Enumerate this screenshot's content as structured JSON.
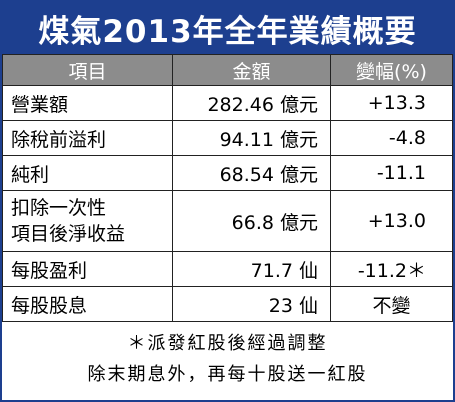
{
  "header": {
    "title": "煤氣2013年全年業績概要"
  },
  "table": {
    "columns": [
      "項目",
      "金額",
      "變幅(%)"
    ],
    "rows": [
      [
        "營業額",
        "282.46 億元",
        "+13.3"
      ],
      [
        "除稅前溢利",
        "94.11 億元",
        "-4.8"
      ],
      [
        "純利",
        "68.54 億元",
        "-11.1"
      ],
      [
        [
          "扣除一次性",
          "項目後淨收益"
        ],
        "66.8 億元",
        "+13.0"
      ],
      [
        "每股盈利",
        "71.7 仙",
        "-11.2＊"
      ],
      [
        "每股股息",
        "23 仙",
        "不變"
      ]
    ]
  },
  "notes": [
    "＊派發紅股後經過調整",
    "除末期息外，再每十股送一紅股"
  ]
}
